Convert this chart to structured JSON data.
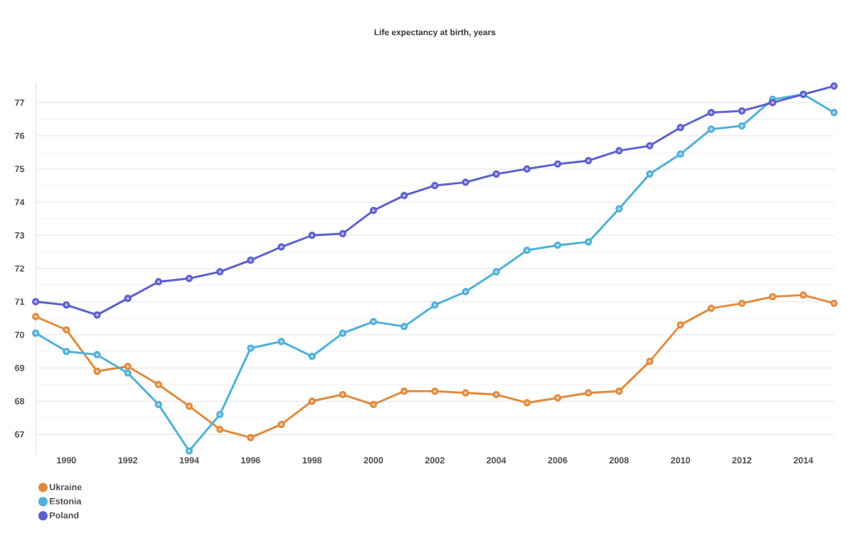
{
  "chart_data": {
    "type": "line",
    "title": "Life expectancy at birth, years",
    "x": [
      1989,
      1990,
      1991,
      1992,
      1993,
      1994,
      1995,
      1996,
      1997,
      1998,
      1999,
      2000,
      2001,
      2002,
      2003,
      2004,
      2005,
      2006,
      2007,
      2008,
      2009,
      2010,
      2011,
      2012,
      2013,
      2014,
      2015
    ],
    "series": [
      {
        "name": "Ukraine",
        "color": "#e08a3c",
        "values": [
          70.55,
          70.15,
          68.9,
          69.05,
          68.5,
          67.85,
          67.15,
          66.9,
          67.3,
          68.0,
          68.2,
          67.9,
          68.3,
          68.3,
          68.25,
          68.2,
          67.95,
          68.1,
          68.25,
          68.3,
          69.2,
          70.3,
          70.8,
          70.95,
          71.15,
          71.2,
          70.95
        ]
      },
      {
        "name": "Estonia",
        "color": "#4fb0d8",
        "values": [
          70.05,
          69.5,
          69.4,
          68.85,
          67.9,
          66.5,
          67.6,
          69.6,
          69.8,
          69.35,
          70.05,
          70.4,
          70.25,
          70.9,
          71.3,
          71.9,
          72.55,
          72.7,
          72.8,
          73.8,
          74.85,
          75.45,
          76.2,
          76.3,
          77.1,
          77.25,
          76.7
        ]
      },
      {
        "name": "Poland",
        "color": "#5b5fcf",
        "values": [
          71.0,
          70.9,
          70.6,
          71.1,
          71.6,
          71.7,
          71.9,
          72.25,
          72.65,
          73.0,
          73.05,
          73.75,
          74.2,
          74.5,
          74.6,
          74.85,
          75.0,
          75.15,
          75.25,
          75.55,
          75.7,
          76.25,
          76.7,
          76.75,
          77.0,
          77.25,
          77.5
        ]
      }
    ],
    "xlim": [
      1989,
      2015
    ],
    "ylim": [
      66.4,
      77.6
    ],
    "xticks": [
      1990,
      1992,
      1994,
      1996,
      1998,
      2000,
      2002,
      2004,
      2006,
      2008,
      2010,
      2012,
      2014
    ],
    "yticks": [
      67,
      68,
      69,
      70,
      71,
      72,
      73,
      74,
      75,
      76,
      77
    ],
    "grid": "y",
    "legend": "bottom left",
    "marker": "circle",
    "line_style": "solid"
  }
}
